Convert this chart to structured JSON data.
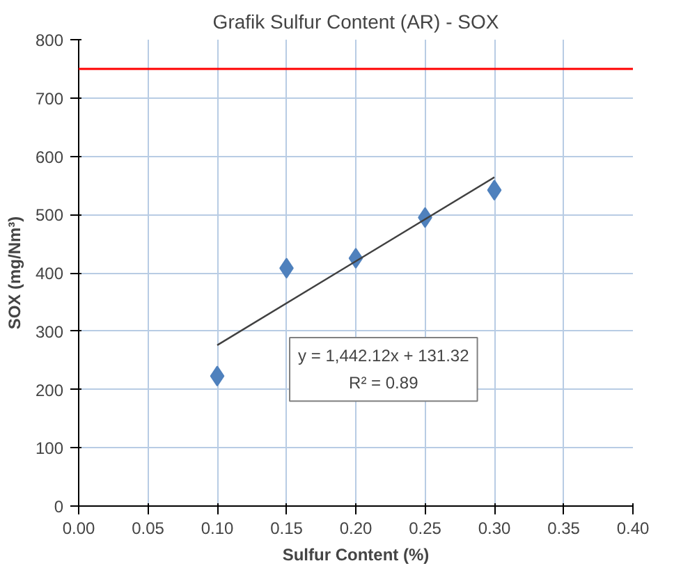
{
  "chart_data": {
    "type": "scatter",
    "title": "Grafik Sulfur Content (AR) - SOX",
    "xlabel": "Sulfur Content (%)",
    "ylabel": "SOX (mg/Nm³)",
    "series": [
      {
        "color": "#4f81bd",
        "marker": "diamond",
        "x": [
          0.1,
          0.15,
          0.2,
          0.25,
          0.3
        ],
        "values": [
          223,
          408,
          425,
          495,
          542
        ]
      },
      {
        "type": "line",
        "color": "#404040",
        "marker": "none",
        "x": [
          0.1,
          0.3
        ],
        "values": [
          276,
          564
        ]
      }
    ],
    "annotations": [
      "y = 1,442.12x + 131.32",
      "R² = 0.89"
    ],
    "ref_lines": [
      {
        "axis": "y",
        "value": 750,
        "color": "#ff0000"
      }
    ],
    "xlim": [
      0,
      0.4
    ],
    "ylim": [
      0,
      800
    ],
    "xticks": [
      {
        "value": 0,
        "label": "0.00"
      },
      {
        "value": 0.05,
        "label": "0.05"
      },
      {
        "value": 0.1,
        "label": "0.10"
      },
      {
        "value": 0.15,
        "label": "0.15"
      },
      {
        "value": 0.2,
        "label": "0.20"
      },
      {
        "value": 0.25,
        "label": "0.25"
      },
      {
        "value": 0.3,
        "label": "0.30"
      },
      {
        "value": 0.35,
        "label": "0.35"
      },
      {
        "value": 0.4,
        "label": "0.40"
      }
    ],
    "yticks": [
      0,
      100,
      200,
      300,
      400,
      500,
      600,
      700,
      800
    ],
    "grid": true
  }
}
